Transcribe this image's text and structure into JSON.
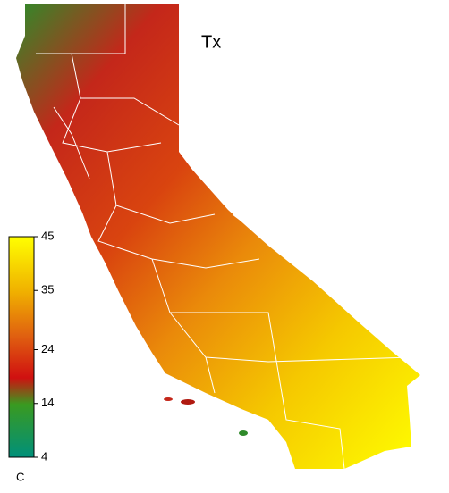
{
  "title": "Tx",
  "colorbar": {
    "range": [
      4,
      45
    ],
    "ticks": [
      4,
      14,
      24,
      35,
      45
    ],
    "unit": "C"
  }
}
